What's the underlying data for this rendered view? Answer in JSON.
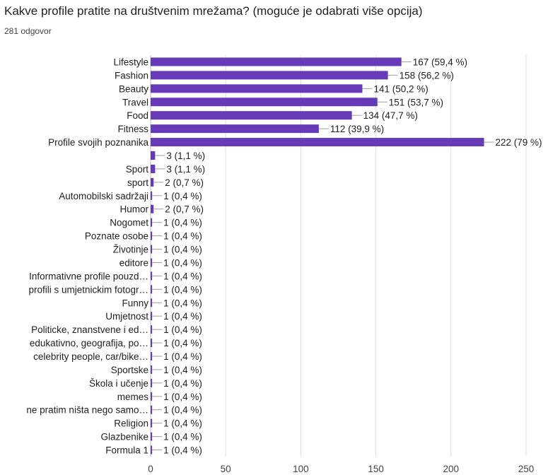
{
  "question": {
    "title": "Kakve profile pratite na društvenim mrežama?   (moguće je odabrati više opcija)",
    "responses": "281 odgovor"
  },
  "colors": {
    "bar": "#673ab7",
    "grid": "#e0e0e0",
    "connector": "#9e9e9e"
  },
  "chart_data": {
    "type": "bar",
    "orientation": "horizontal",
    "title": "Kakve profile pratite na društvenim mrežama?   (moguće je odabrati više opcija)",
    "subtitle": "281 odgovor",
    "categories": [
      "Lifestyle",
      "Fashion",
      "Beauty",
      "Travel",
      "Food",
      "Fitness",
      "Profile svojih poznanika",
      "",
      "Sport",
      "sport",
      "Automobilski sadržaji",
      "Humor",
      "Nogomet",
      "Poznate osobe",
      "Životinje",
      "editore",
      "Informativne profile pouzd…",
      "profili s umjetnickim fotogr…",
      "Funny",
      "Umjetnost",
      "Politicke, znanstvene i ed…",
      "edukativno, geografija, po…",
      "celebrity people, car/bike…",
      "Sportske",
      "Škola i učenje",
      "memes",
      "ne pratim ništa nego samo…",
      "Religion",
      "Glazbenike",
      "Formula 1"
    ],
    "values": [
      167,
      158,
      141,
      151,
      134,
      112,
      222,
      3,
      3,
      2,
      1,
      2,
      1,
      1,
      1,
      1,
      1,
      1,
      1,
      1,
      1,
      1,
      1,
      1,
      1,
      1,
      1,
      1,
      1,
      1
    ],
    "value_labels": [
      "167 (59,4 %)",
      "158 (56,2 %)",
      "141 (50,2 %)",
      "151 (53,7 %)",
      "134 (47,7 %)",
      "112 (39,9 %)",
      "222 (79 %)",
      "3 (1,1 %)",
      "3 (1,1 %)",
      "2 (0,7 %)",
      "1 (0,4 %)",
      "2 (0,7 %)",
      "1 (0,4 %)",
      "1 (0,4 %)",
      "1 (0,4 %)",
      "1 (0,4 %)",
      "1 (0,4 %)",
      "1 (0,4 %)",
      "1 (0,4 %)",
      "1 (0,4 %)",
      "1 (0,4 %)",
      "1 (0,4 %)",
      "1 (0,4 %)",
      "1 (0,4 %)",
      "1 (0,4 %)",
      "1 (0,4 %)",
      "1 (0,4 %)",
      "1 (0,4 %)",
      "1 (0,4 %)",
      "1 (0,4 %)"
    ],
    "xticks": [
      "0",
      "50",
      "100",
      "150",
      "200",
      "250"
    ],
    "xlim": [
      0,
      250
    ],
    "grid": true,
    "legend": "none"
  }
}
